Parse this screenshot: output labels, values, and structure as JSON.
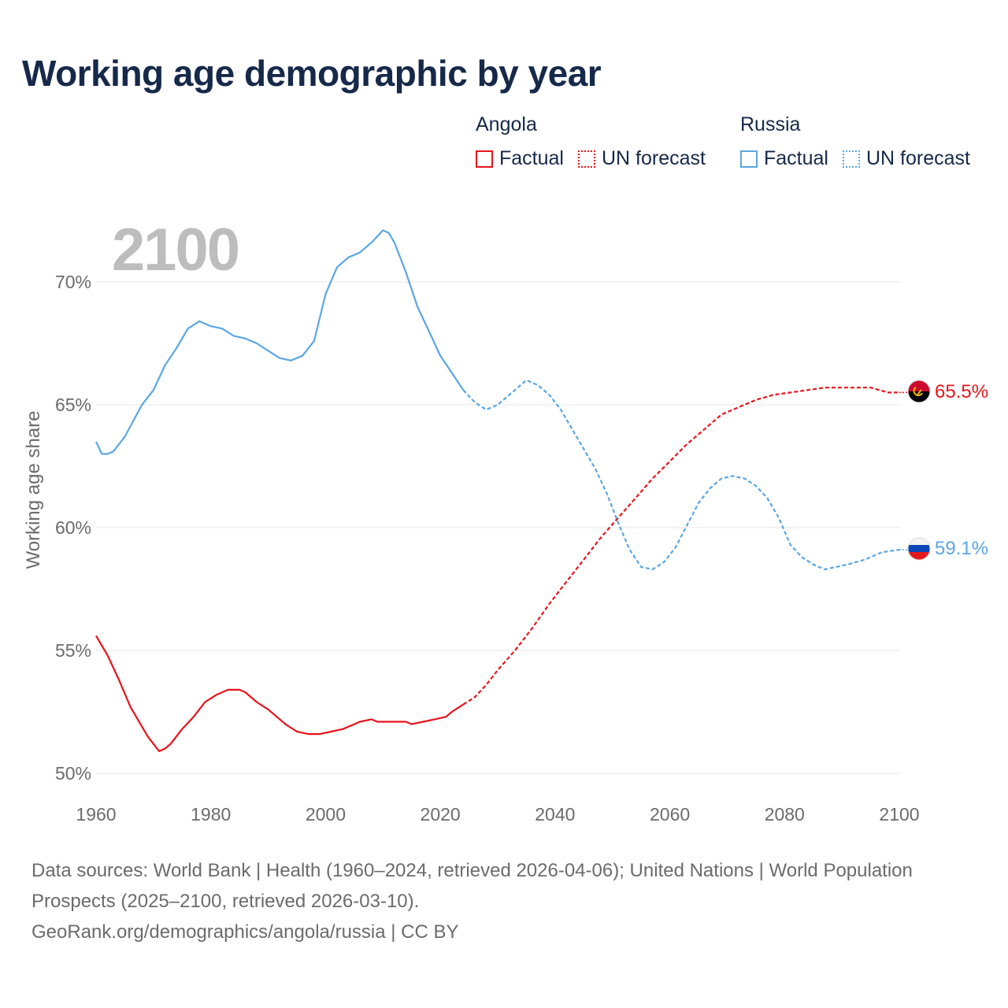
{
  "title": "Working age demographic by year",
  "year_label": "2100",
  "legend": {
    "angola": {
      "name": "Angola",
      "factual": "Factual",
      "forecast": "UN forecast",
      "color": "#e8141b"
    },
    "russia": {
      "name": "Russia",
      "factual": "Factual",
      "forecast": "UN forecast",
      "color": "#5ba6e3"
    }
  },
  "footer": {
    "line1": "Data sources: World Bank | Health (1960–2024, retrieved 2026-04-06); United Nations | World Population Prospects (2025–2100, retrieved 2026-03-10).",
    "line2": "GeoRank.org/demographics/angola/russia | CC BY"
  },
  "chart_data": {
    "type": "line",
    "title": "Working age demographic by year",
    "xlabel": "",
    "ylabel": "Working age share",
    "xlim": [
      1960,
      2100
    ],
    "ylim": [
      50,
      72.5
    ],
    "x_ticks": [
      1960,
      1980,
      2000,
      2020,
      2040,
      2060,
      2080,
      2100
    ],
    "y_ticks": [
      50,
      55,
      60,
      65,
      70
    ],
    "y_tick_labels": [
      "50%",
      "55%",
      "60%",
      "65%",
      "70%"
    ],
    "grid": true,
    "factual_range": [
      1960,
      2024
    ],
    "forecast_range": [
      2024,
      2100
    ],
    "series": [
      {
        "name": "Angola",
        "color": "#e8141b",
        "end_label": "65.5%",
        "flag": "angola-flag",
        "points": [
          [
            1960,
            55.6
          ],
          [
            1962,
            54.8
          ],
          [
            1964,
            53.8
          ],
          [
            1966,
            52.7
          ],
          [
            1968,
            51.9
          ],
          [
            1969,
            51.5
          ],
          [
            1971,
            50.9
          ],
          [
            1972,
            51.0
          ],
          [
            1973,
            51.2
          ],
          [
            1975,
            51.8
          ],
          [
            1977,
            52.3
          ],
          [
            1979,
            52.9
          ],
          [
            1981,
            53.2
          ],
          [
            1983,
            53.4
          ],
          [
            1985,
            53.4
          ],
          [
            1986,
            53.3
          ],
          [
            1988,
            52.9
          ],
          [
            1990,
            52.6
          ],
          [
            1993,
            52.0
          ],
          [
            1995,
            51.7
          ],
          [
            1997,
            51.6
          ],
          [
            1999,
            51.6
          ],
          [
            2001,
            51.7
          ],
          [
            2003,
            51.8
          ],
          [
            2005,
            52.0
          ],
          [
            2006,
            52.1
          ],
          [
            2008,
            52.2
          ],
          [
            2009,
            52.1
          ],
          [
            2012,
            52.1
          ],
          [
            2014,
            52.1
          ],
          [
            2015,
            52.0
          ],
          [
            2017,
            52.1
          ],
          [
            2019,
            52.2
          ],
          [
            2021,
            52.3
          ],
          [
            2022,
            52.5
          ],
          [
            2024,
            52.8
          ],
          [
            2026,
            53.1
          ],
          [
            2028,
            53.6
          ],
          [
            2030,
            54.2
          ],
          [
            2033,
            55.0
          ],
          [
            2036,
            55.9
          ],
          [
            2039,
            56.9
          ],
          [
            2042,
            57.8
          ],
          [
            2045,
            58.7
          ],
          [
            2048,
            59.6
          ],
          [
            2051,
            60.4
          ],
          [
            2054,
            61.2
          ],
          [
            2057,
            62.0
          ],
          [
            2060,
            62.7
          ],
          [
            2063,
            63.4
          ],
          [
            2066,
            64.0
          ],
          [
            2069,
            64.6
          ],
          [
            2072,
            64.9
          ],
          [
            2075,
            65.2
          ],
          [
            2078,
            65.4
          ],
          [
            2081,
            65.5
          ],
          [
            2084,
            65.6
          ],
          [
            2087,
            65.7
          ],
          [
            2090,
            65.7
          ],
          [
            2095,
            65.7
          ],
          [
            2098,
            65.5
          ],
          [
            2100,
            65.5
          ]
        ]
      },
      {
        "name": "Russia",
        "color": "#5ba6e3",
        "end_label": "59.1%",
        "flag": "russia-flag",
        "points": [
          [
            1960,
            63.5
          ],
          [
            1961,
            63.0
          ],
          [
            1962,
            63.0
          ],
          [
            1963,
            63.1
          ],
          [
            1965,
            63.7
          ],
          [
            1968,
            65.0
          ],
          [
            1970,
            65.6
          ],
          [
            1972,
            66.6
          ],
          [
            1974,
            67.3
          ],
          [
            1976,
            68.1
          ],
          [
            1978,
            68.4
          ],
          [
            1980,
            68.2
          ],
          [
            1982,
            68.1
          ],
          [
            1984,
            67.8
          ],
          [
            1986,
            67.7
          ],
          [
            1988,
            67.5
          ],
          [
            1990,
            67.2
          ],
          [
            1992,
            66.9
          ],
          [
            1994,
            66.8
          ],
          [
            1996,
            67.0
          ],
          [
            1998,
            67.6
          ],
          [
            2000,
            69.5
          ],
          [
            2002,
            70.6
          ],
          [
            2004,
            71.0
          ],
          [
            2006,
            71.2
          ],
          [
            2008,
            71.6
          ],
          [
            2010,
            72.1
          ],
          [
            2011,
            72.0
          ],
          [
            2012,
            71.6
          ],
          [
            2014,
            70.4
          ],
          [
            2016,
            69.0
          ],
          [
            2018,
            68.0
          ],
          [
            2020,
            67.0
          ],
          [
            2022,
            66.3
          ],
          [
            2024,
            65.6
          ],
          [
            2026,
            65.1
          ],
          [
            2028,
            64.8
          ],
          [
            2030,
            65.0
          ],
          [
            2033,
            65.6
          ],
          [
            2035,
            66.0
          ],
          [
            2037,
            65.8
          ],
          [
            2039,
            65.4
          ],
          [
            2041,
            64.8
          ],
          [
            2043,
            64.0
          ],
          [
            2045,
            63.2
          ],
          [
            2047,
            62.4
          ],
          [
            2049,
            61.4
          ],
          [
            2051,
            60.2
          ],
          [
            2053,
            59.1
          ],
          [
            2055,
            58.4
          ],
          [
            2057,
            58.3
          ],
          [
            2059,
            58.6
          ],
          [
            2061,
            59.2
          ],
          [
            2063,
            60.1
          ],
          [
            2065,
            61.0
          ],
          [
            2067,
            61.6
          ],
          [
            2069,
            62.0
          ],
          [
            2071,
            62.1
          ],
          [
            2073,
            62.0
          ],
          [
            2075,
            61.7
          ],
          [
            2077,
            61.2
          ],
          [
            2079,
            60.4
          ],
          [
            2081,
            59.3
          ],
          [
            2083,
            58.8
          ],
          [
            2085,
            58.5
          ],
          [
            2087,
            58.3
          ],
          [
            2089,
            58.4
          ],
          [
            2091,
            58.5
          ],
          [
            2094,
            58.7
          ],
          [
            2097,
            59.0
          ],
          [
            2100,
            59.1
          ]
        ]
      }
    ]
  }
}
